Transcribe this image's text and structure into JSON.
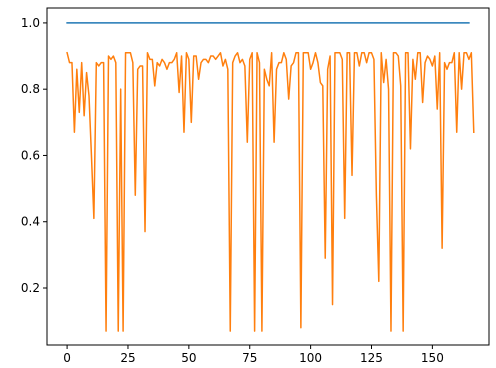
{
  "chart_data": {
    "type": "line",
    "title": "",
    "xlabel": "",
    "ylabel": "",
    "xlim": [
      -8.25,
      173.25
    ],
    "ylim": [
      0.028,
      1.045
    ],
    "grid": false,
    "x_ticks": [
      0,
      25,
      50,
      75,
      100,
      125,
      150
    ],
    "x_tick_labels": [
      "0",
      "25",
      "50",
      "75",
      "100",
      "125",
      "150"
    ],
    "y_ticks": [
      0.2,
      0.4,
      0.6,
      0.8,
      1.0
    ],
    "y_tick_labels": [
      "0.2",
      "0.4",
      "0.6",
      "0.8",
      "1.0"
    ],
    "series": [
      {
        "color": "#1f77b4",
        "x_start": 0,
        "values": [
          1.0,
          1.0,
          1.0,
          1.0,
          1.0,
          1.0,
          1.0,
          1.0,
          1.0,
          1.0,
          1.0,
          1.0,
          1.0,
          1.0,
          1.0,
          1.0,
          1.0,
          1.0,
          1.0,
          1.0,
          1.0,
          1.0,
          1.0,
          1.0,
          1.0,
          1.0,
          1.0,
          1.0,
          1.0,
          1.0,
          1.0,
          1.0,
          1.0,
          1.0,
          1.0,
          1.0,
          1.0,
          1.0,
          1.0,
          1.0,
          1.0,
          1.0,
          1.0,
          1.0,
          1.0,
          1.0,
          1.0,
          1.0,
          1.0,
          1.0,
          1.0,
          1.0,
          1.0,
          1.0,
          1.0,
          1.0,
          1.0,
          1.0,
          1.0,
          1.0,
          1.0,
          1.0,
          1.0,
          1.0,
          1.0,
          1.0,
          1.0,
          1.0,
          1.0,
          1.0,
          1.0,
          1.0,
          1.0,
          1.0,
          1.0,
          1.0,
          1.0,
          1.0,
          1.0,
          1.0,
          1.0,
          1.0,
          1.0,
          1.0,
          1.0,
          1.0,
          1.0,
          1.0,
          1.0,
          1.0,
          1.0,
          1.0,
          1.0,
          1.0,
          1.0,
          1.0,
          1.0,
          1.0,
          1.0,
          1.0,
          1.0,
          1.0,
          1.0,
          1.0,
          1.0,
          1.0,
          1.0,
          1.0,
          1.0,
          1.0,
          1.0,
          1.0,
          1.0,
          1.0,
          1.0,
          1.0,
          1.0,
          1.0,
          1.0,
          1.0,
          1.0,
          1.0,
          1.0,
          1.0,
          1.0,
          1.0,
          1.0,
          1.0,
          1.0,
          1.0,
          1.0,
          1.0,
          1.0,
          1.0,
          1.0,
          1.0,
          1.0,
          1.0,
          1.0,
          1.0,
          1.0,
          1.0,
          1.0,
          1.0,
          1.0,
          1.0,
          1.0,
          1.0,
          1.0,
          1.0,
          1.0,
          1.0,
          1.0,
          1.0,
          1.0,
          1.0,
          1.0,
          1.0,
          1.0,
          1.0,
          1.0,
          1.0,
          1.0,
          1.0,
          1.0,
          1.0
        ]
      },
      {
        "color": "#ff7f0e",
        "x_start": 0,
        "values": [
          0.91,
          0.88,
          0.88,
          0.67,
          0.86,
          0.73,
          0.88,
          0.72,
          0.85,
          0.78,
          0.6,
          0.41,
          0.88,
          0.87,
          0.88,
          0.88,
          0.07,
          0.9,
          0.89,
          0.9,
          0.88,
          0.07,
          0.8,
          0.07,
          0.91,
          0.91,
          0.91,
          0.88,
          0.48,
          0.86,
          0.87,
          0.87,
          0.37,
          0.91,
          0.89,
          0.89,
          0.81,
          0.88,
          0.87,
          0.89,
          0.88,
          0.86,
          0.88,
          0.88,
          0.89,
          0.91,
          0.79,
          0.9,
          0.67,
          0.91,
          0.89,
          0.7,
          0.9,
          0.9,
          0.83,
          0.88,
          0.89,
          0.89,
          0.88,
          0.9,
          0.9,
          0.89,
          0.9,
          0.91,
          0.87,
          0.89,
          0.86,
          0.07,
          0.88,
          0.9,
          0.91,
          0.88,
          0.89,
          0.87,
          0.64,
          0.89,
          0.91,
          0.07,
          0.91,
          0.88,
          0.07,
          0.86,
          0.83,
          0.81,
          0.91,
          0.64,
          0.86,
          0.88,
          0.88,
          0.91,
          0.89,
          0.77,
          0.87,
          0.88,
          0.91,
          0.91,
          0.08,
          0.91,
          0.91,
          0.91,
          0.86,
          0.88,
          0.91,
          0.88,
          0.82,
          0.81,
          0.29,
          0.86,
          0.9,
          0.15,
          0.91,
          0.91,
          0.91,
          0.89,
          0.41,
          0.91,
          0.91,
          0.54,
          0.91,
          0.91,
          0.87,
          0.91,
          0.91,
          0.88,
          0.91,
          0.91,
          0.89,
          0.48,
          0.22,
          0.91,
          0.82,
          0.89,
          0.8,
          0.07,
          0.91,
          0.91,
          0.9,
          0.81,
          0.07,
          0.91,
          0.91,
          0.62,
          0.89,
          0.83,
          0.91,
          0.91,
          0.76,
          0.88,
          0.9,
          0.89,
          0.87,
          0.9,
          0.74,
          0.91,
          0.32,
          0.88,
          0.86,
          0.88,
          0.88,
          0.91,
          0.67,
          0.91,
          0.8,
          0.91,
          0.91,
          0.89,
          0.91,
          0.67
        ]
      }
    ]
  }
}
